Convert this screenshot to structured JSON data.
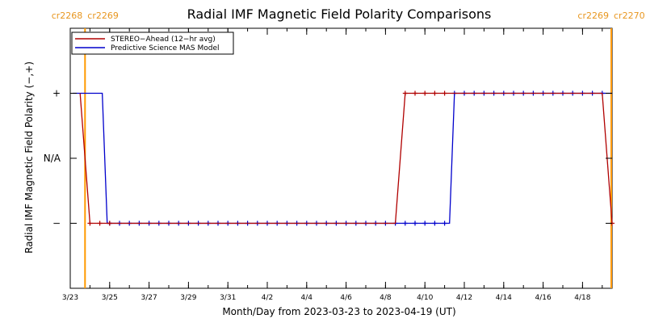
{
  "chart_data": {
    "type": "line",
    "title": "Radial IMF Magnetic Field Polarity Comparisons",
    "xlabel": "Month/Day from 2023-03-23 to 2023-04-19 (UT)",
    "ylabel": "Radial IMF Magnetic Field Polarity (−,+)",
    "x_range": [
      "2023-03-23",
      "2023-04-19T12:00"
    ],
    "x_ticks": [
      {
        "date": "2023-03-23",
        "label": "3/23"
      },
      {
        "date": "2023-03-25",
        "label": "3/25"
      },
      {
        "date": "2023-03-27",
        "label": "3/27"
      },
      {
        "date": "2023-03-29",
        "label": "3/29"
      },
      {
        "date": "2023-03-31",
        "label": "3/31"
      },
      {
        "date": "2023-04-02",
        "label": "4/2"
      },
      {
        "date": "2023-04-04",
        "label": "4/4"
      },
      {
        "date": "2023-04-06",
        "label": "4/6"
      },
      {
        "date": "2023-04-08",
        "label": "4/8"
      },
      {
        "date": "2023-04-10",
        "label": "4/10"
      },
      {
        "date": "2023-04-12",
        "label": "4/12"
      },
      {
        "date": "2023-04-14",
        "label": "4/14"
      },
      {
        "date": "2023-04-16",
        "label": "4/16"
      },
      {
        "date": "2023-04-18",
        "label": "4/18"
      }
    ],
    "y_levels": [
      {
        "value": 1,
        "label": "+"
      },
      {
        "value": 0,
        "label": "N/A"
      },
      {
        "value": -1,
        "label": "−"
      }
    ],
    "ylim": [
      -2,
      2
    ],
    "rotations": [
      {
        "date": "2023-03-23T18:00",
        "left_label": "cr2268",
        "right_label": "cr2269"
      },
      {
        "date": "2023-04-19T12:00",
        "left_label": "cr2269",
        "right_label": "cr2270"
      }
    ],
    "series": [
      {
        "name": "STEREO−Ahead (12−hr avg)",
        "color": "#b00000",
        "points": [
          [
            "2023-03-23T12:00",
            1
          ],
          [
            "2023-03-24T00:00",
            -1
          ],
          [
            "2023-03-24T12:00",
            -1
          ],
          [
            "2023-03-25T00:00",
            -1
          ],
          [
            "2023-04-08T12:00",
            -1
          ],
          [
            "2023-04-09T00:00",
            1
          ],
          [
            "2023-04-19T00:00",
            1
          ],
          [
            "2023-04-19T12:00",
            -1
          ]
        ],
        "markers": [
          "2023-03-24T00:00",
          "2023-03-24T12:00",
          "2023-03-25T00:00",
          "2023-04-09T00:00",
          "2023-04-09T12:00",
          "2023-04-10T00:00",
          "2023-04-10T12:00",
          "2023-04-11T00:00",
          "2023-04-19T12:00"
        ]
      },
      {
        "name": "Predictive Science MAS Model",
        "color": "#0000cc",
        "points": [
          [
            "2023-03-23T03:00",
            1
          ],
          [
            "2023-03-24T15:00",
            1
          ],
          [
            "2023-03-24T21:00",
            -1
          ],
          [
            "2023-04-11T06:00",
            -1
          ],
          [
            "2023-04-11T12:00",
            1
          ],
          [
            "2023-04-19T12:00",
            1
          ]
        ],
        "marker_range": [
          "2023-03-25T00:00",
          "2023-04-19T00:00"
        ],
        "marker_step_hours": 12
      }
    ],
    "legend": "top-left"
  }
}
